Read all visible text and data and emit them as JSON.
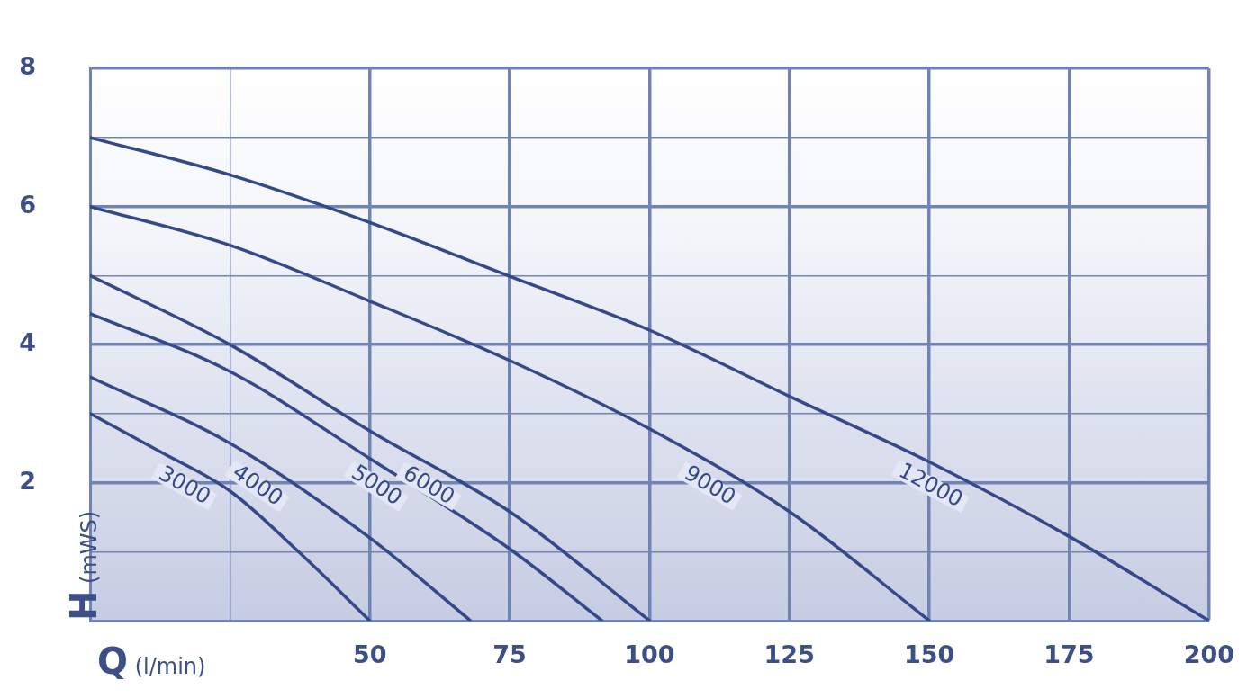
{
  "chart_data": {
    "type": "line",
    "xlabel": "Q (l/min)",
    "ylabel": "H (mWS)",
    "xlim": [
      0,
      200
    ],
    "ylim": [
      0,
      8
    ],
    "xticks": [
      {
        "value": 0,
        "label": null
      },
      {
        "value": 25,
        "label": null
      },
      50,
      75,
      100,
      125,
      150,
      175,
      200
    ],
    "yticks": [
      {
        "value": 0,
        "label": null
      },
      {
        "value": 1,
        "label": null
      },
      2,
      {
        "value": 3,
        "label": null
      },
      4,
      {
        "value": 5,
        "label": null
      },
      6,
      {
        "value": 7,
        "label": null
      },
      8
    ],
    "grid": true,
    "legend": false,
    "marker": "none",
    "line_style": "solid",
    "series": [
      {
        "name": "3000",
        "color": "#34498a",
        "x": [
          0,
          12.5,
          25,
          37.5,
          50
        ],
        "values": [
          3.0,
          2.45,
          1.88,
          0.98,
          0
        ]
      },
      {
        "name": "4000",
        "color": "#34498a",
        "x": [
          0,
          25,
          50,
          68
        ],
        "values": [
          3.53,
          2.57,
          1.2,
          0
        ]
      },
      {
        "name": "5000",
        "color": "#34498a",
        "x": [
          0,
          25,
          50,
          75,
          91.5
        ],
        "values": [
          4.45,
          3.61,
          2.35,
          1.04,
          0
        ]
      },
      {
        "name": "6000",
        "color": "#34498a",
        "x": [
          0,
          25,
          50,
          75,
          100
        ],
        "values": [
          5.0,
          4.0,
          2.75,
          1.58,
          0
        ]
      },
      {
        "name": "9000",
        "color": "#34498a",
        "x": [
          0,
          25,
          50,
          75,
          100,
          125,
          150
        ],
        "values": [
          6.0,
          5.44,
          4.63,
          3.77,
          2.78,
          1.58,
          0
        ]
      },
      {
        "name": "12000",
        "color": "#34498a",
        "x": [
          0,
          25,
          50,
          75,
          100,
          125,
          150,
          175,
          200
        ],
        "values": [
          7.0,
          6.46,
          5.77,
          4.99,
          4.21,
          3.25,
          2.3,
          1.22,
          0
        ]
      }
    ]
  }
}
